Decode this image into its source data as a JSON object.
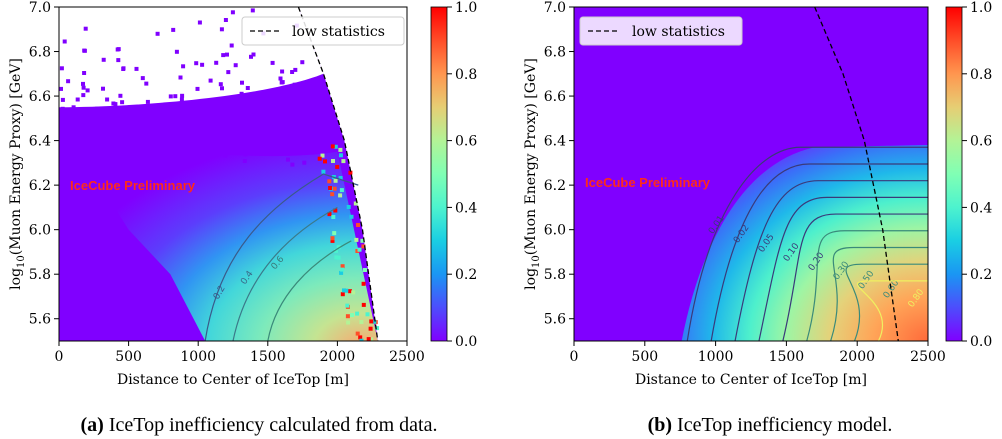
{
  "chart_data": [
    {
      "type": "heatmap",
      "title": "",
      "caption_tag": "(a)",
      "caption_text": "IceTop inefficiency calculated from data.",
      "xlabel": "Distance to Center of IceTop [m]",
      "ylabel_parts": [
        "log",
        "10",
        "(Muon Energy Proxy) [GeV]"
      ],
      "xlim": [
        0,
        2500
      ],
      "ylim": [
        5.5,
        7.0
      ],
      "xticks": [
        0,
        500,
        1000,
        1500,
        2000,
        2500
      ],
      "yticks": [
        5.6,
        5.8,
        6.0,
        6.2,
        6.4,
        6.6,
        6.8,
        7.0
      ],
      "colorbar": {
        "range": [
          0.0,
          1.0
        ],
        "ticks": [
          0.0,
          0.2,
          0.4,
          0.6,
          0.8,
          1.0
        ],
        "colormap": "rainbow"
      },
      "annotation": "IceCube Preliminary",
      "legend": {
        "label": "low statistics",
        "style": "dashed",
        "placement": "upper right"
      },
      "contour_labels": [
        "0.2",
        "0.4",
        "0.6"
      ],
      "low_statistics_boundary": {
        "x": [
          1720,
          1900,
          2050,
          2180,
          2290
        ],
        "y": [
          7.0,
          6.7,
          6.4,
          6.0,
          5.5
        ]
      },
      "populated_region_edge": {
        "x": [
          1050,
          800,
          500,
          250,
          0
        ],
        "y": [
          5.5,
          5.8,
          6.0,
          6.25,
          6.45
        ]
      }
    },
    {
      "type": "heatmap",
      "title": "",
      "caption_tag": "(b)",
      "caption_text": "IceTop inefficiency model.",
      "xlabel": "Distance to Center of IceTop [m]",
      "ylabel_parts": [
        "log",
        "10",
        "(Muon Energy Proxy) [GeV]"
      ],
      "xlim": [
        0,
        2500
      ],
      "ylim": [
        5.5,
        7.0
      ],
      "xticks": [
        0,
        500,
        1000,
        1500,
        2000,
        2500
      ],
      "yticks": [
        5.6,
        5.8,
        6.0,
        6.2,
        6.4,
        6.6,
        6.8,
        7.0
      ],
      "colorbar": {
        "range": [
          0.0,
          1.0
        ],
        "ticks": [
          0.0,
          0.2,
          0.4,
          0.6,
          0.8,
          1.0
        ],
        "colormap": "rainbow"
      },
      "annotation": "IceCube Preliminary",
      "legend": {
        "label": "low statistics",
        "style": "dashed",
        "placement": "upper left"
      },
      "contour_levels": [
        {
          "label": "0.01",
          "value": 0.01
        },
        {
          "label": "0.02",
          "value": 0.02
        },
        {
          "label": "0.05",
          "value": 0.05
        },
        {
          "label": "0.10",
          "value": 0.1
        },
        {
          "label": "0.20",
          "value": 0.2
        },
        {
          "label": "0.30",
          "value": 0.3
        },
        {
          "label": "0.50",
          "value": 0.5
        },
        {
          "label": "0.60",
          "value": 0.6
        },
        {
          "label": "0.80",
          "value": 0.8
        }
      ],
      "low_statistics_boundary": {
        "x": [
          1700,
          1900,
          2050,
          2180,
          2290
        ],
        "y": [
          7.0,
          6.7,
          6.4,
          6.0,
          5.5
        ]
      }
    }
  ]
}
